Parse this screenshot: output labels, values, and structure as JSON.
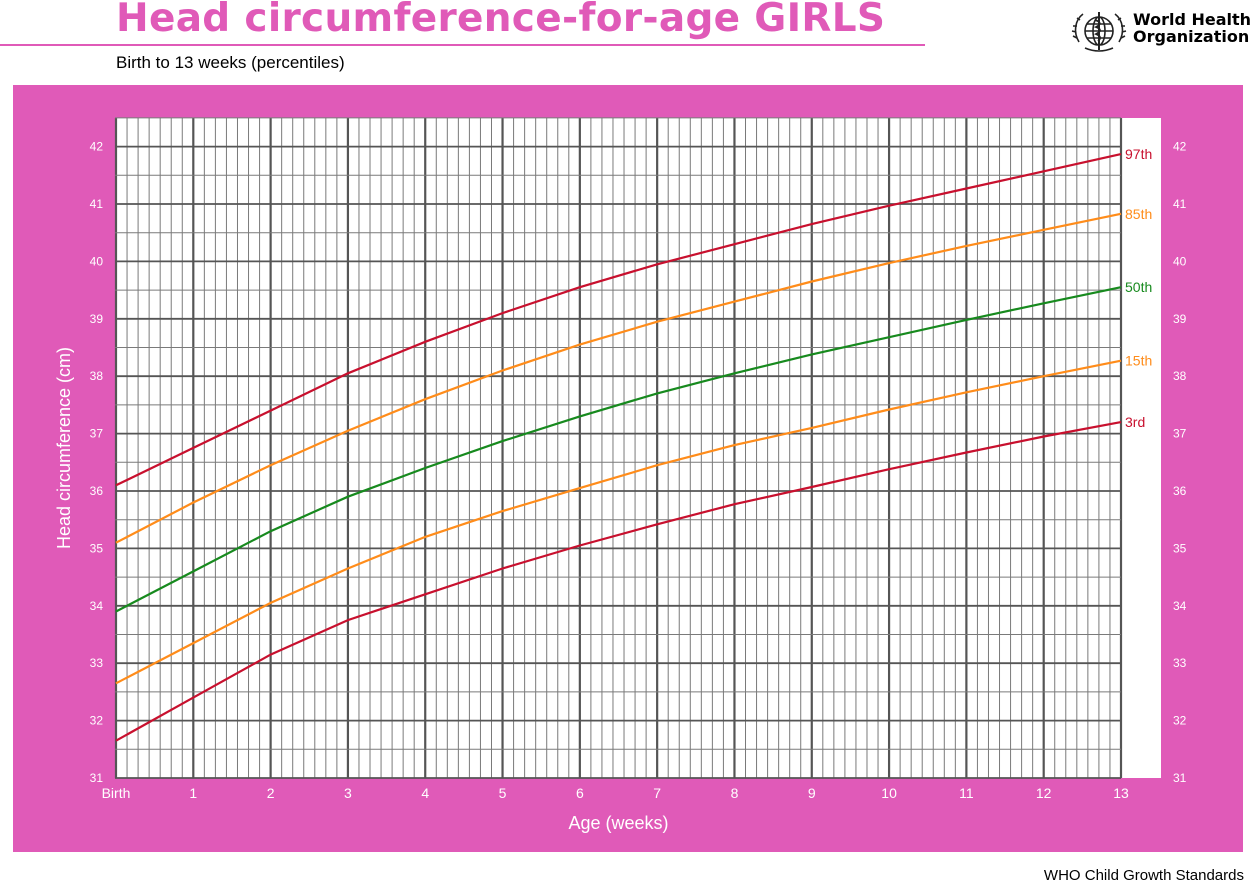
{
  "header": {
    "title": "Head circumference-for-age  GIRLS",
    "subtitle": "Birth to 13 weeks (percentiles)",
    "org_name_line1": "World Health",
    "org_name_line2": "Organization",
    "emblem_icon": "who-emblem-icon"
  },
  "footer": {
    "text": "WHO Child Growth Standards"
  },
  "colors": {
    "title": "#e05ab8",
    "panel": "#e05ab8",
    "plot_bg": "#ffffff",
    "grid_minor": "#7a7a7a",
    "grid_major": "#555555",
    "p97": "#c8102e",
    "p85": "#ff8c1a",
    "p50": "#178a1e",
    "p15": "#ff8c1a",
    "p3": "#c8102e"
  },
  "chart_data": {
    "type": "line",
    "title": "Head circumference-for-age  GIRLS",
    "subtitle": "Birth to 13 weeks (percentiles)",
    "xlabel": "Age (weeks)",
    "ylabel": "Head circumference (cm)",
    "xlim": [
      0,
      13
    ],
    "ylim": [
      31,
      42.5
    ],
    "x_tick_labels": [
      "Birth",
      "1",
      "2",
      "3",
      "4",
      "5",
      "6",
      "7",
      "8",
      "9",
      "10",
      "11",
      "12",
      "13"
    ],
    "y_ticks": [
      31,
      32,
      33,
      34,
      35,
      36,
      37,
      38,
      39,
      40,
      41,
      42
    ],
    "grid": true,
    "x": [
      0,
      1,
      2,
      3,
      4,
      5,
      6,
      7,
      8,
      9,
      10,
      11,
      12,
      13
    ],
    "series": [
      {
        "name": "97th",
        "color_key": "p97",
        "values": [
          36.1,
          36.75,
          37.4,
          38.05,
          38.6,
          39.1,
          39.55,
          39.95,
          40.3,
          40.65,
          40.97,
          41.27,
          41.57,
          41.87
        ]
      },
      {
        "name": "85th",
        "color_key": "p85",
        "values": [
          35.1,
          35.8,
          36.45,
          37.05,
          37.6,
          38.1,
          38.55,
          38.95,
          39.3,
          39.65,
          39.97,
          40.27,
          40.55,
          40.83
        ]
      },
      {
        "name": "50th",
        "color_key": "p50",
        "values": [
          33.9,
          34.6,
          35.3,
          35.9,
          36.4,
          36.87,
          37.3,
          37.7,
          38.05,
          38.38,
          38.68,
          38.98,
          39.27,
          39.55
        ]
      },
      {
        "name": "15th",
        "color_key": "p15",
        "values": [
          32.65,
          33.35,
          34.05,
          34.65,
          35.2,
          35.65,
          36.05,
          36.45,
          36.8,
          37.1,
          37.42,
          37.72,
          38.0,
          38.27
        ]
      },
      {
        "name": "3rd",
        "color_key": "p3",
        "values": [
          31.65,
          32.4,
          33.15,
          33.75,
          34.2,
          34.65,
          35.05,
          35.42,
          35.77,
          36.07,
          36.38,
          36.67,
          36.95,
          37.2
        ]
      }
    ]
  }
}
